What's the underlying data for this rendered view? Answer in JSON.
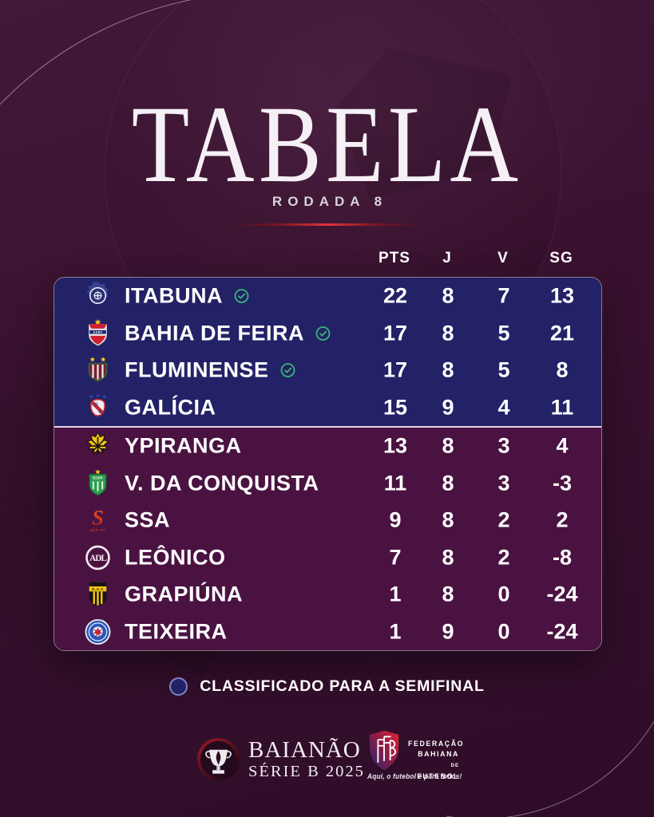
{
  "page": {
    "title": "TABELA",
    "subtitle": "RODADA 8"
  },
  "table": {
    "columns": [
      "PTS",
      "J",
      "V",
      "SG"
    ],
    "qualified_zone_rows": 4,
    "rows": [
      {
        "team": "ITABUNA",
        "logo": "itabuna-crest",
        "qualified": true,
        "pts": "22",
        "j": "8",
        "v": "7",
        "sg": "13"
      },
      {
        "team": "BAHIA DE FEIRA",
        "logo": "bahia-de-feira-crest",
        "qualified": true,
        "pts": "17",
        "j": "8",
        "v": "5",
        "sg": "21"
      },
      {
        "team": "FLUMINENSE",
        "logo": "fluminense-crest",
        "qualified": true,
        "pts": "17",
        "j": "8",
        "v": "5",
        "sg": "8"
      },
      {
        "team": "GALÍCIA",
        "logo": "galicia-crest",
        "qualified": false,
        "pts": "15",
        "j": "9",
        "v": "4",
        "sg": "11"
      },
      {
        "team": "YPIRANGA",
        "logo": "ypiranga-crest",
        "qualified": false,
        "pts": "13",
        "j": "8",
        "v": "3",
        "sg": "4"
      },
      {
        "team": "V. DA CONQUISTA",
        "logo": "vitoria-da-conquista-crest",
        "qualified": false,
        "pts": "11",
        "j": "8",
        "v": "3",
        "sg": "-3"
      },
      {
        "team": "SSA",
        "logo": "ssa-crest",
        "qualified": false,
        "pts": "9",
        "j": "8",
        "v": "2",
        "sg": "2"
      },
      {
        "team": "LEÔNICO",
        "logo": "leonico-crest",
        "qualified": false,
        "pts": "7",
        "j": "8",
        "v": "2",
        "sg": "-8"
      },
      {
        "team": "GRAPIÚNA",
        "logo": "grapiuna-crest",
        "qualified": false,
        "pts": "1",
        "j": "8",
        "v": "0",
        "sg": "-24"
      },
      {
        "team": "TEIXEIRA",
        "logo": "teixeira-crest",
        "qualified": false,
        "pts": "1",
        "j": "9",
        "v": "0",
        "sg": "-24"
      }
    ]
  },
  "legend": {
    "icon": "qualified-dot",
    "label": "CLASSIFICADO PARA A SEMIFINAL"
  },
  "footer": {
    "championship": {
      "icon": "trophy-badge",
      "name": "BAIANÃO",
      "edition": "SÉRIE B 2025"
    },
    "federation": {
      "icon": "fbf-shield",
      "lines": [
        "FEDERAÇÃO",
        "BAHIANA",
        "DE",
        "FUTEBOL"
      ],
      "tagline": "Aqui, o futebol é para todos!"
    }
  },
  "colors": {
    "background": "#38112e",
    "qualified_zone": "#232267",
    "standard_zone": "#4a1241",
    "accent_red": "#e8323c",
    "check_green": "#37b877",
    "text": "#ffffff"
  }
}
